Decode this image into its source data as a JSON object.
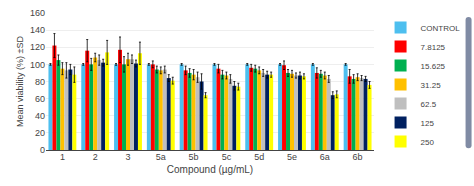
{
  "chart_data": {
    "type": "bar",
    "xlabel": "Compound (µg/mL)",
    "ylabel": "Mean viability (%) ±SD",
    "categories": [
      "1",
      "2",
      "3",
      "5a",
      "5b",
      "5c",
      "5d",
      "5e",
      "6a",
      "6b"
    ],
    "series": [
      {
        "name": "CONTROL",
        "color": "#4DBFEF",
        "values": [
          100,
          100,
          100,
          100,
          100,
          100,
          100,
          100,
          100,
          100
        ],
        "errors": [
          1,
          1,
          1,
          1,
          1,
          1,
          1,
          1,
          1,
          1
        ]
      },
      {
        "name": "7.8125",
        "color": "#FF0000",
        "values": [
          122,
          116,
          117,
          100,
          93,
          95,
          96,
          99,
          90,
          86
        ],
        "errors": [
          14,
          13,
          15,
          4,
          5,
          5,
          4,
          5,
          6,
          8
        ]
      },
      {
        "name": "15.625",
        "color": "#00B050",
        "values": [
          105,
          100,
          100,
          94,
          90,
          88,
          95,
          90,
          89,
          83
        ],
        "errors": [
          6,
          7,
          9,
          4,
          5,
          5,
          4,
          4,
          4,
          5
        ]
      },
      {
        "name": "31.25",
        "color": "#FFC000",
        "values": [
          95,
          108,
          106,
          93,
          88,
          87,
          93,
          89,
          87,
          85
        ],
        "errors": [
          7,
          5,
          7,
          4,
          6,
          4,
          4,
          4,
          4,
          4
        ]
      },
      {
        "name": "62.5",
        "color": "#BFBFBF",
        "values": [
          93,
          105,
          106,
          94,
          85,
          83,
          90,
          87,
          83,
          84
        ],
        "errors": [
          9,
          6,
          5,
          4,
          6,
          5,
          4,
          3,
          4,
          3
        ]
      },
      {
        "name": "125",
        "color": "#002060",
        "values": [
          94,
          102,
          101,
          84,
          80,
          75,
          88,
          87,
          64,
          83
        ],
        "errors": [
          6,
          4,
          4,
          4,
          9,
          5,
          4,
          4,
          4,
          3
        ]
      },
      {
        "name": "250",
        "color": "#FFFF00",
        "values": [
          88,
          114,
          113,
          81,
          64,
          74,
          88,
          86,
          65,
          76
        ],
        "errors": [
          9,
          14,
          13,
          4,
          3,
          4,
          3,
          3,
          4,
          4
        ]
      }
    ],
    "ylim": [
      0,
      160
    ],
    "yticks": [
      0,
      20,
      40,
      60,
      80,
      100,
      120,
      140,
      160
    ],
    "grid": true,
    "legend": "upper right"
  }
}
